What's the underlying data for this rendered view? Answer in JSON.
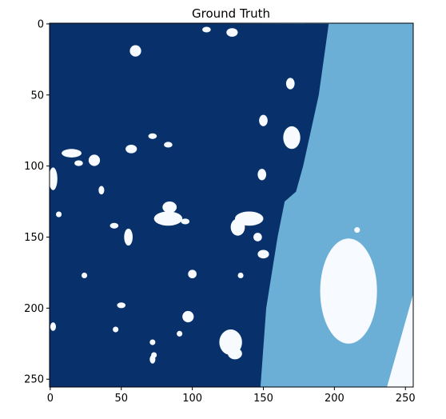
{
  "chart_data": {
    "type": "heatmap",
    "title": "Ground Truth",
    "xlabel": "",
    "ylabel": "",
    "xlim": [
      0,
      255
    ],
    "ylim": [
      255,
      0
    ],
    "x_ticks": [
      0,
      50,
      100,
      150,
      200,
      250
    ],
    "y_ticks": [
      0,
      50,
      100,
      150,
      200,
      250
    ],
    "x_tick_labels": [
      "0",
      "50",
      "100",
      "150",
      "200",
      "250"
    ],
    "y_tick_labels": [
      "0",
      "50",
      "100",
      "150",
      "200",
      "250"
    ],
    "colormap": "Blues",
    "colors": {
      "class_0": "#f7fbff",
      "class_1": "#6baed6",
      "class_2": "#08306b"
    },
    "regions": {
      "class_2_boundary_x_at_rows": [
        {
          "row": 0,
          "x": 196
        },
        {
          "row": 50,
          "x": 189
        },
        {
          "row": 100,
          "x": 178
        },
        {
          "row": 118,
          "x": 173
        },
        {
          "row": 125,
          "x": 165
        },
        {
          "row": 150,
          "x": 160
        },
        {
          "row": 200,
          "x": 152
        },
        {
          "row": 255,
          "x": 148
        }
      ],
      "class_0_ellipse": {
        "cx": 210,
        "cy": 188,
        "rx": 20,
        "ry": 37
      },
      "class_0_corner_boundary": [
        {
          "row": 190,
          "x": 255
        },
        {
          "row": 255,
          "x": 237
        }
      ],
      "class_0_blobs": [
        {
          "cx": 128,
          "cy": 6,
          "rx": 4,
          "ry": 3
        },
        {
          "cx": 110,
          "cy": 4,
          "rx": 3,
          "ry": 2
        },
        {
          "cx": 60,
          "cy": 19,
          "rx": 4,
          "ry": 4
        },
        {
          "cx": 169,
          "cy": 42,
          "rx": 3,
          "ry": 4
        },
        {
          "cx": 150,
          "cy": 68,
          "rx": 3,
          "ry": 4
        },
        {
          "cx": 170,
          "cy": 80,
          "rx": 6,
          "ry": 8
        },
        {
          "cx": 57,
          "cy": 88,
          "rx": 4,
          "ry": 3
        },
        {
          "cx": 72,
          "cy": 79,
          "rx": 3,
          "ry": 2
        },
        {
          "cx": 83,
          "cy": 85,
          "rx": 3,
          "ry": 2
        },
        {
          "cx": 15,
          "cy": 91,
          "rx": 7,
          "ry": 3
        },
        {
          "cx": 31,
          "cy": 96,
          "rx": 4,
          "ry": 4
        },
        {
          "cx": 2,
          "cy": 109,
          "rx": 3,
          "ry": 8
        },
        {
          "cx": 20,
          "cy": 98,
          "rx": 3,
          "ry": 2
        },
        {
          "cx": 149,
          "cy": 106,
          "rx": 3,
          "ry": 4
        },
        {
          "cx": 36,
          "cy": 117,
          "rx": 2,
          "ry": 3
        },
        {
          "cx": 83,
          "cy": 137,
          "rx": 10,
          "ry": 5
        },
        {
          "cx": 84,
          "cy": 129,
          "rx": 5,
          "ry": 4
        },
        {
          "cx": 140,
          "cy": 137,
          "rx": 10,
          "ry": 5
        },
        {
          "cx": 132,
          "cy": 143,
          "rx": 5,
          "ry": 6
        },
        {
          "cx": 146,
          "cy": 150,
          "rx": 3,
          "ry": 3
        },
        {
          "cx": 55,
          "cy": 150,
          "rx": 3,
          "ry": 6
        },
        {
          "cx": 45,
          "cy": 142,
          "rx": 3,
          "ry": 2
        },
        {
          "cx": 95,
          "cy": 139,
          "rx": 3,
          "ry": 2
        },
        {
          "cx": 150,
          "cy": 162,
          "rx": 4,
          "ry": 3
        },
        {
          "cx": 134,
          "cy": 177,
          "rx": 2,
          "ry": 2
        },
        {
          "cx": 100,
          "cy": 176,
          "rx": 3,
          "ry": 3
        },
        {
          "cx": 24,
          "cy": 177,
          "rx": 2,
          "ry": 2
        },
        {
          "cx": 97,
          "cy": 206,
          "rx": 4,
          "ry": 4
        },
        {
          "cx": 50,
          "cy": 198,
          "rx": 3,
          "ry": 2
        },
        {
          "cx": 2,
          "cy": 213,
          "rx": 2,
          "ry": 3
        },
        {
          "cx": 46,
          "cy": 215,
          "rx": 2,
          "ry": 2
        },
        {
          "cx": 127,
          "cy": 224,
          "rx": 8,
          "ry": 9
        },
        {
          "cx": 130,
          "cy": 232,
          "rx": 5,
          "ry": 4
        },
        {
          "cx": 72,
          "cy": 224,
          "rx": 2,
          "ry": 2
        },
        {
          "cx": 73,
          "cy": 233,
          "rx": 2,
          "ry": 2
        },
        {
          "cx": 91,
          "cy": 218,
          "rx": 2,
          "ry": 2
        },
        {
          "cx": 72,
          "cy": 236,
          "rx": 2,
          "ry": 3
        },
        {
          "cx": 216,
          "cy": 145,
          "rx": 2,
          "ry": 2
        },
        {
          "cx": 6,
          "cy": 134,
          "rx": 2,
          "ry": 2
        }
      ]
    },
    "grid": false,
    "legend": "none"
  }
}
